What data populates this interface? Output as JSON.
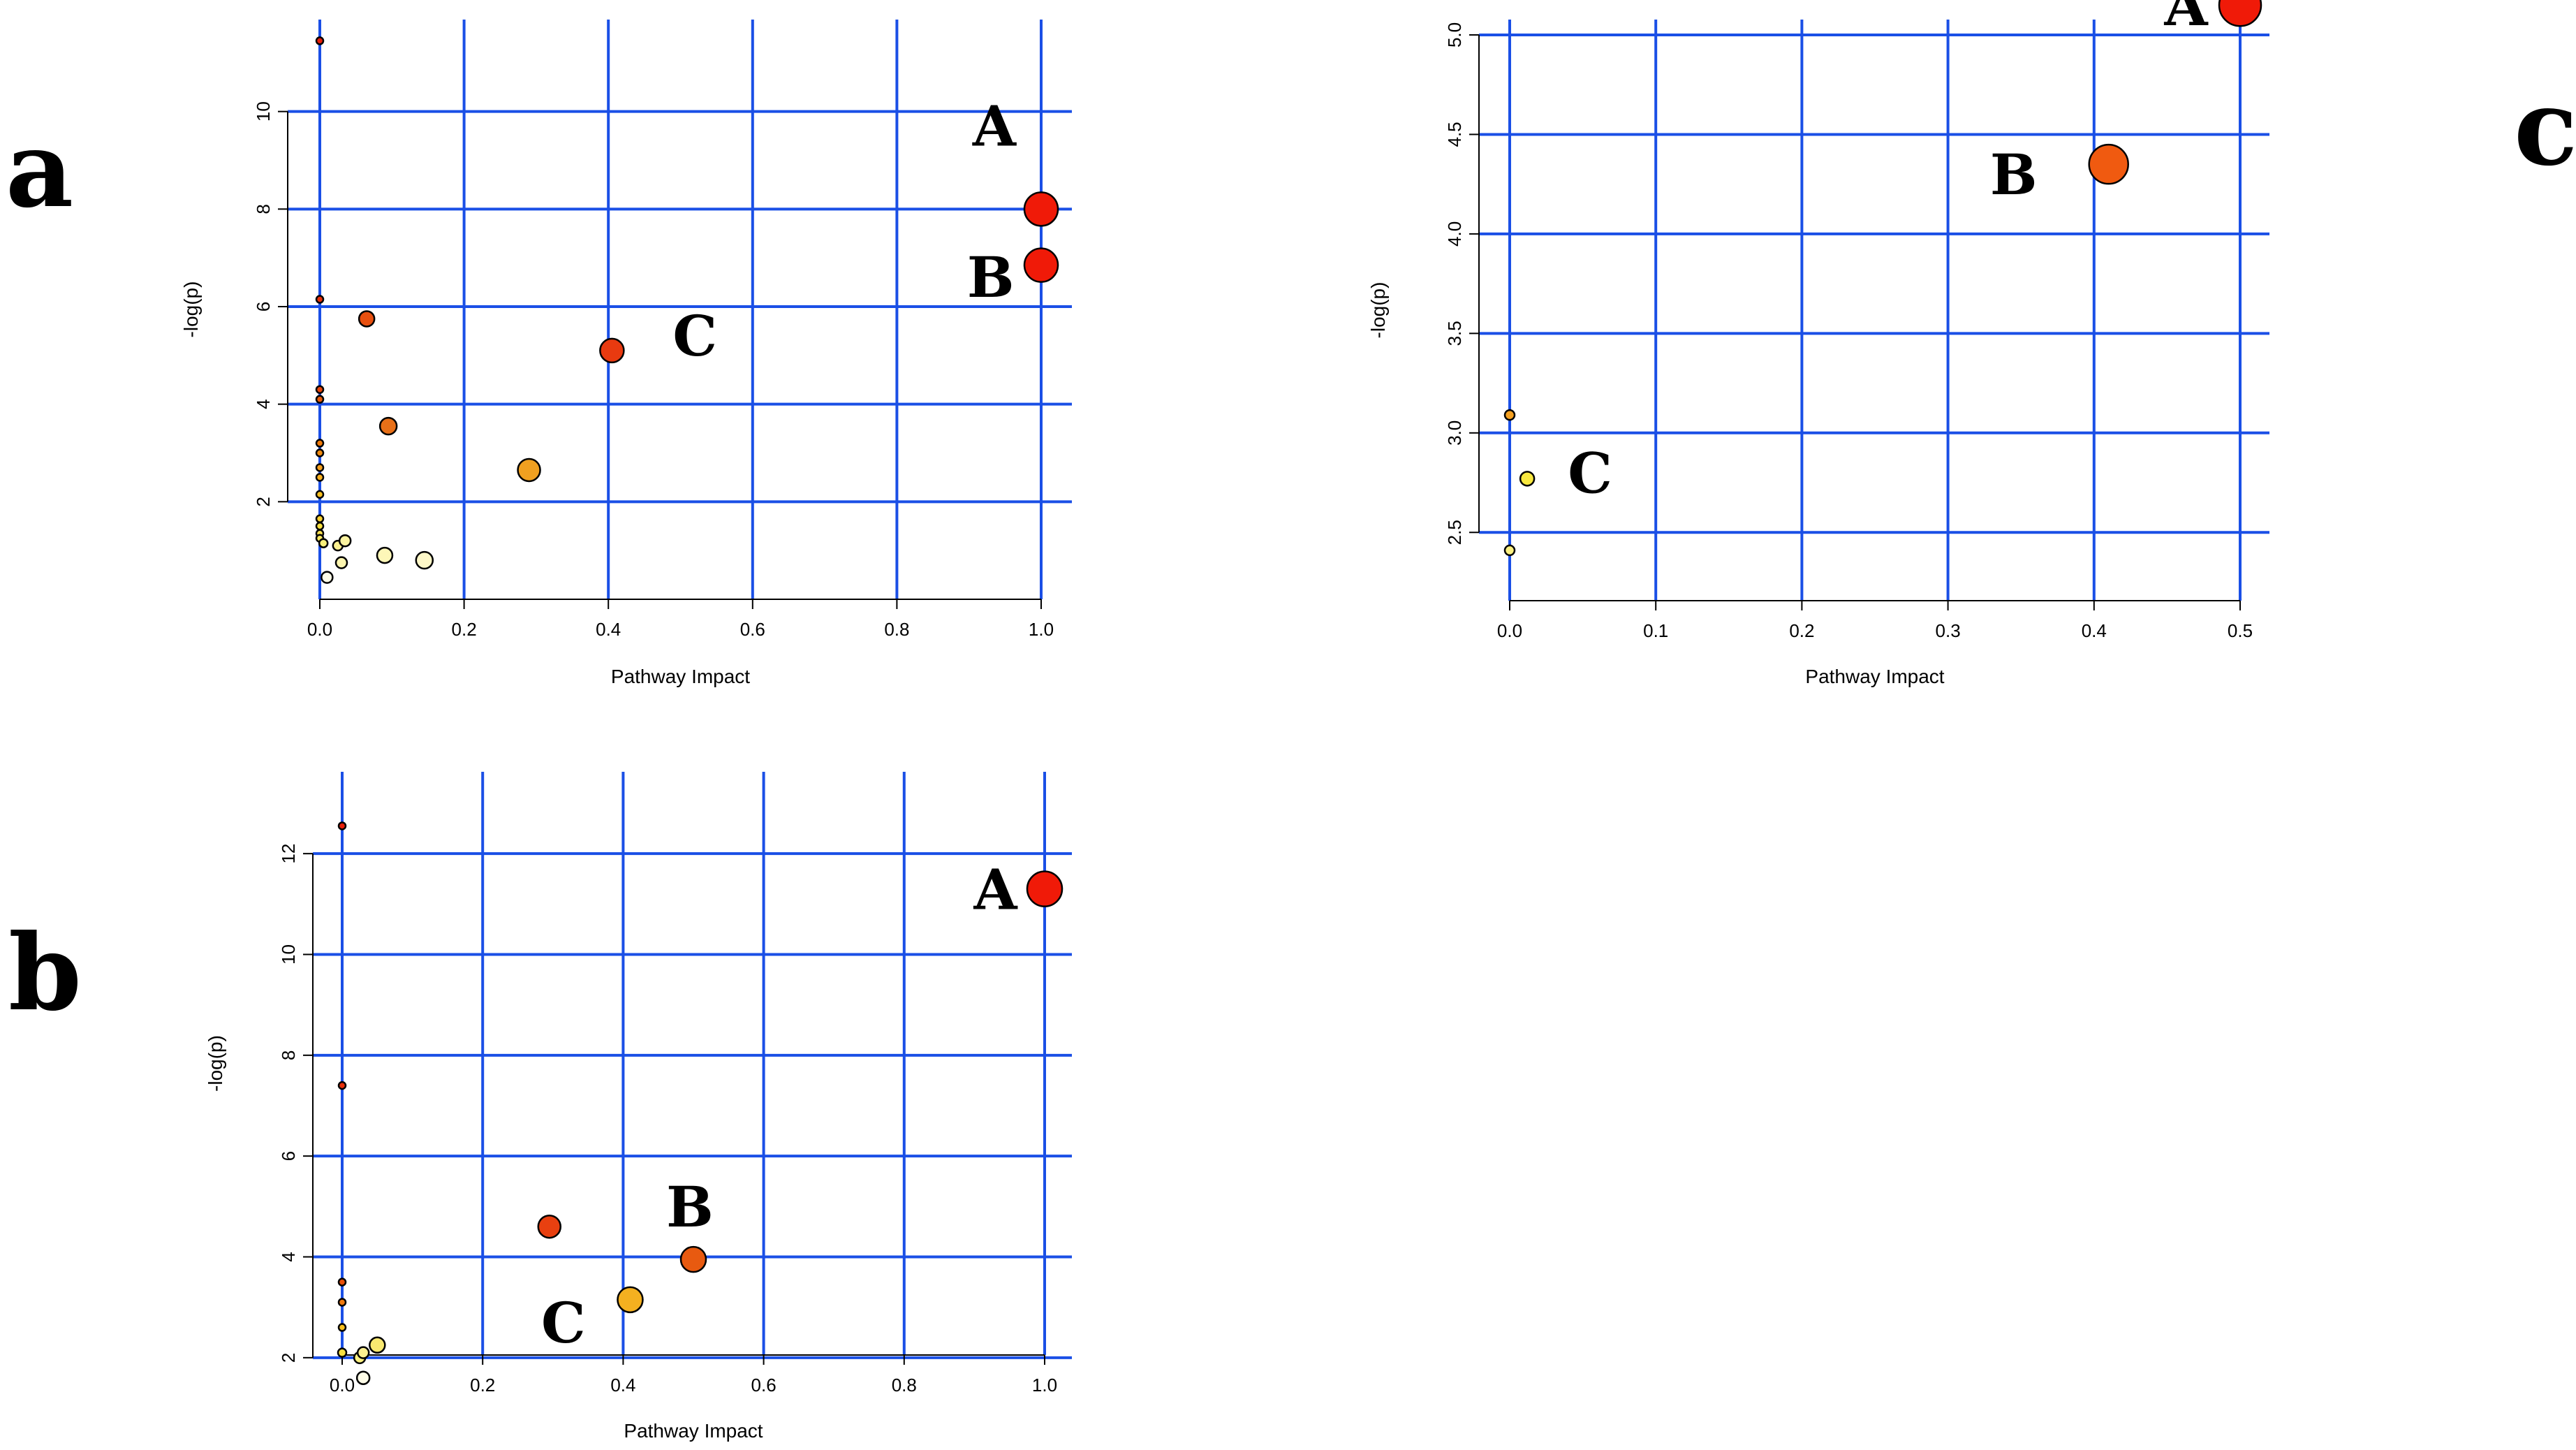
{
  "panel_labels": [
    "a",
    "b",
    "c"
  ],
  "chart_data": [
    {
      "panel": "a",
      "type": "scatter",
      "title": "",
      "xlabel": "Pathway Impact",
      "ylabel": "-log(p)",
      "xlim": [
        0.0,
        1.0
      ],
      "ylim": [
        0.0,
        12.0
      ],
      "xticks": [
        0.0,
        0.2,
        0.4,
        0.6,
        0.8,
        1.0
      ],
      "xtick_labels": [
        "0.0",
        "0.2",
        "0.4",
        "0.6",
        "0.8",
        "1.0"
      ],
      "yticks": [
        2,
        4,
        6,
        8,
        10
      ],
      "ytick_labels": [
        "2",
        "4",
        "6",
        "8",
        "10"
      ],
      "grid": true,
      "points": [
        {
          "x": 0.0,
          "y": 11.45,
          "r": 5,
          "color": "#e8200a"
        },
        {
          "x": 0.0,
          "y": 6.15,
          "r": 5,
          "color": "#e8300a"
        },
        {
          "x": 0.0,
          "y": 4.3,
          "r": 5,
          "color": "#e8450a"
        },
        {
          "x": 0.0,
          "y": 4.1,
          "r": 5,
          "color": "#e85a0a"
        },
        {
          "x": 0.0,
          "y": 3.2,
          "r": 5,
          "color": "#f07a0a"
        },
        {
          "x": 0.0,
          "y": 3.0,
          "r": 5,
          "color": "#f08a10"
        },
        {
          "x": 0.0,
          "y": 2.7,
          "r": 5,
          "color": "#f4a020"
        },
        {
          "x": 0.0,
          "y": 2.5,
          "r": 5,
          "color": "#f8b020"
        },
        {
          "x": 0.0,
          "y": 2.15,
          "r": 5,
          "color": "#f8c020"
        },
        {
          "x": 0.0,
          "y": 1.65,
          "r": 5,
          "color": "#f8d030"
        },
        {
          "x": 0.0,
          "y": 1.5,
          "r": 5,
          "color": "#f8e040"
        },
        {
          "x": 0.0,
          "y": 1.35,
          "r": 5,
          "color": "#fae050"
        },
        {
          "x": 0.0,
          "y": 1.25,
          "r": 5,
          "color": "#fae860"
        },
        {
          "x": 0.005,
          "y": 1.15,
          "r": 6,
          "color": "#faf07a"
        },
        {
          "x": 0.025,
          "y": 1.1,
          "r": 7,
          "color": "#fbf090"
        },
        {
          "x": 0.035,
          "y": 1.2,
          "r": 8,
          "color": "#fcf4a0"
        },
        {
          "x": 0.03,
          "y": 0.75,
          "r": 8,
          "color": "#fdf6b0"
        },
        {
          "x": 0.01,
          "y": 0.45,
          "r": 8,
          "color": "#fffde8"
        },
        {
          "x": 0.09,
          "y": 0.9,
          "r": 11,
          "color": "#fdf7b8"
        },
        {
          "x": 0.145,
          "y": 0.8,
          "r": 12,
          "color": "#fef8c8"
        },
        {
          "x": 0.065,
          "y": 5.75,
          "r": 11,
          "color": "#e85010"
        },
        {
          "x": 0.095,
          "y": 3.55,
          "r": 12,
          "color": "#e87018"
        },
        {
          "x": 0.29,
          "y": 2.65,
          "r": 16,
          "color": "#f0a020"
        },
        {
          "x": 0.405,
          "y": 5.1,
          "r": 17,
          "color": "#e83a10"
        },
        {
          "x": 1.0,
          "y": 8.0,
          "r": 24,
          "color": "#f01a08"
        },
        {
          "x": 1.0,
          "y": 6.85,
          "r": 24,
          "color": "#f01a08"
        }
      ],
      "annotations": [
        {
          "text": "A",
          "x": 0.935,
          "y": 9.3
        },
        {
          "text": "B",
          "x": 0.93,
          "y": 6.2
        },
        {
          "text": "C",
          "x": 0.52,
          "y": 5.0
        }
      ]
    },
    {
      "panel": "b",
      "type": "scatter",
      "title": "",
      "xlabel": "Pathway Impact",
      "ylabel": "-log(p)",
      "xlim": [
        0.0,
        1.0
      ],
      "ylim": [
        1.0,
        13.0
      ],
      "xticks": [
        0.0,
        0.2,
        0.4,
        0.6,
        0.8,
        1.0
      ],
      "xtick_labels": [
        "0.0",
        "0.2",
        "0.4",
        "0.6",
        "0.8",
        "1.0"
      ],
      "yticks": [
        2,
        4,
        6,
        8,
        10,
        12
      ],
      "ytick_labels": [
        "2",
        "4",
        "6",
        "8",
        "10",
        "12"
      ],
      "grid": true,
      "points": [
        {
          "x": 0.0,
          "y": 12.55,
          "r": 5,
          "color": "#e8200a"
        },
        {
          "x": 0.0,
          "y": 7.4,
          "r": 5,
          "color": "#e8300a"
        },
        {
          "x": 0.0,
          "y": 3.5,
          "r": 5,
          "color": "#e8500a"
        },
        {
          "x": 0.0,
          "y": 3.1,
          "r": 5,
          "color": "#f07a10"
        },
        {
          "x": 0.0,
          "y": 2.6,
          "r": 5,
          "color": "#f8c020"
        },
        {
          "x": 0.0,
          "y": 2.1,
          "r": 6,
          "color": "#f8e040"
        },
        {
          "x": 0.025,
          "y": 2.0,
          "r": 8,
          "color": "#fbf080"
        },
        {
          "x": 0.03,
          "y": 2.1,
          "r": 8,
          "color": "#fcf090"
        },
        {
          "x": 0.05,
          "y": 2.25,
          "r": 11,
          "color": "#f8e870"
        },
        {
          "x": 0.03,
          "y": 1.6,
          "r": 9,
          "color": "#fffde8"
        },
        {
          "x": 0.295,
          "y": 4.6,
          "r": 16,
          "color": "#e84010"
        },
        {
          "x": 0.5,
          "y": 3.95,
          "r": 18,
          "color": "#e85a10"
        },
        {
          "x": 0.41,
          "y": 3.15,
          "r": 18,
          "color": "#f4b020"
        },
        {
          "x": 1.0,
          "y": 11.3,
          "r": 25,
          "color": "#f01a08"
        }
      ],
      "annotations": [
        {
          "text": "A",
          "x": 0.93,
          "y": 10.9
        },
        {
          "text": "B",
          "x": 0.495,
          "y": 4.6
        },
        {
          "text": "C",
          "x": 0.315,
          "y": 2.3
        }
      ]
    },
    {
      "panel": "c",
      "type": "scatter",
      "title": "",
      "xlabel": "Pathway Impact",
      "ylabel": "-log(p)",
      "xlim": [
        0.0,
        0.5
      ],
      "ylim": [
        2.35,
        5.2
      ],
      "xticks": [
        0.0,
        0.1,
        0.2,
        0.3,
        0.4,
        0.5
      ],
      "xtick_labels": [
        "0.0",
        "0.1",
        "0.2",
        "0.3",
        "0.4",
        "0.5"
      ],
      "yticks": [
        2.5,
        3.0,
        3.5,
        4.0,
        4.5,
        5.0
      ],
      "ytick_labels": [
        "2.5",
        "3.0",
        "3.5",
        "4.0",
        "4.5",
        "5.0"
      ],
      "grid": true,
      "points": [
        {
          "x": 0.0,
          "y": 3.09,
          "r": 7,
          "color": "#f4a020"
        },
        {
          "x": 0.012,
          "y": 2.77,
          "r": 10,
          "color": "#f8e840"
        },
        {
          "x": 0.0,
          "y": 2.41,
          "r": 7,
          "color": "#fbf080"
        },
        {
          "x": 0.41,
          "y": 4.35,
          "r": 28,
          "color": "#f05a10"
        },
        {
          "x": 0.5,
          "y": 5.15,
          "r": 30,
          "color": "#f01a08"
        }
      ],
      "annotations": [
        {
          "text": "A",
          "x": 0.463,
          "y": 5.05
        },
        {
          "text": "B",
          "x": 0.345,
          "y": 4.2
        },
        {
          "text": "C",
          "x": 0.055,
          "y": 2.7
        }
      ]
    }
  ]
}
